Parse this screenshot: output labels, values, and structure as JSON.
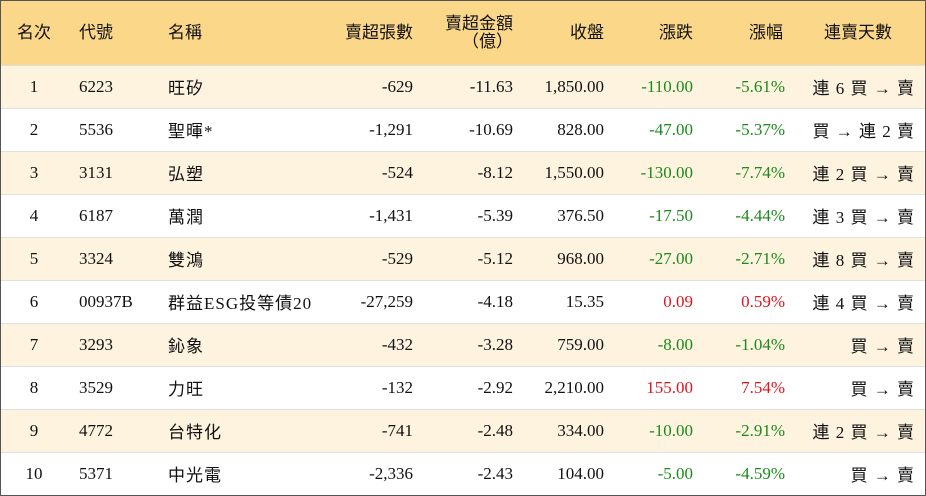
{
  "headers": {
    "rank": "名次",
    "code": "代號",
    "name": "名稱",
    "sell_lots": "賣超張數",
    "sell_amount_line1": "賣超金額",
    "sell_amount_line2": "（億）",
    "close": "收盤",
    "change": "漲跌",
    "change_pct": "漲幅",
    "streak": "連賣天數"
  },
  "rows": [
    {
      "rank": "1",
      "code": "6223",
      "name": "旺矽",
      "sell_lots": "-629",
      "sell_amount": "-11.63",
      "close": "1,850.00",
      "change": "-110.00",
      "change_pct": "-5.61%",
      "dir": "neg",
      "streak": "連 6 買 → 賣"
    },
    {
      "rank": "2",
      "code": "5536",
      "name": "聖暉*",
      "sell_lots": "-1,291",
      "sell_amount": "-10.69",
      "close": "828.00",
      "change": "-47.00",
      "change_pct": "-5.37%",
      "dir": "neg",
      "streak": "買 → 連 2 賣"
    },
    {
      "rank": "3",
      "code": "3131",
      "name": "弘塑",
      "sell_lots": "-524",
      "sell_amount": "-8.12",
      "close": "1,550.00",
      "change": "-130.00",
      "change_pct": "-7.74%",
      "dir": "neg",
      "streak": "連 2 買 → 賣"
    },
    {
      "rank": "4",
      "code": "6187",
      "name": "萬潤",
      "sell_lots": "-1,431",
      "sell_amount": "-5.39",
      "close": "376.50",
      "change": "-17.50",
      "change_pct": "-4.44%",
      "dir": "neg",
      "streak": "連 3 買 → 賣"
    },
    {
      "rank": "5",
      "code": "3324",
      "name": "雙鴻",
      "sell_lots": "-529",
      "sell_amount": "-5.12",
      "close": "968.00",
      "change": "-27.00",
      "change_pct": "-2.71%",
      "dir": "neg",
      "streak": "連 8 買 → 賣"
    },
    {
      "rank": "6",
      "code": "00937B",
      "name": "群益ESG投等債20",
      "sell_lots": "-27,259",
      "sell_amount": "-4.18",
      "close": "15.35",
      "change": "0.09",
      "change_pct": "0.59%",
      "dir": "pos",
      "streak": "連 4 買 → 賣"
    },
    {
      "rank": "7",
      "code": "3293",
      "name": "鈊象",
      "sell_lots": "-432",
      "sell_amount": "-3.28",
      "close": "759.00",
      "change": "-8.00",
      "change_pct": "-1.04%",
      "dir": "neg",
      "streak": "買 → 賣"
    },
    {
      "rank": "8",
      "code": "3529",
      "name": "力旺",
      "sell_lots": "-132",
      "sell_amount": "-2.92",
      "close": "2,210.00",
      "change": "155.00",
      "change_pct": "7.54%",
      "dir": "pos",
      "streak": "買 → 賣"
    },
    {
      "rank": "9",
      "code": "4772",
      "name": "台特化",
      "sell_lots": "-741",
      "sell_amount": "-2.48",
      "close": "334.00",
      "change": "-10.00",
      "change_pct": "-2.91%",
      "dir": "neg",
      "streak": "連 2 買 → 賣"
    },
    {
      "rank": "10",
      "code": "5371",
      "name": "中光電",
      "sell_lots": "-2,336",
      "sell_amount": "-2.43",
      "close": "104.00",
      "change": "-5.00",
      "change_pct": "-4.59%",
      "dir": "neg",
      "streak": "買 → 賣"
    }
  ],
  "colors": {
    "header_bg": "#fbd78a",
    "odd_row_bg": "#fdf3df",
    "negative": "#1a8a1a",
    "positive": "#e0141e"
  }
}
